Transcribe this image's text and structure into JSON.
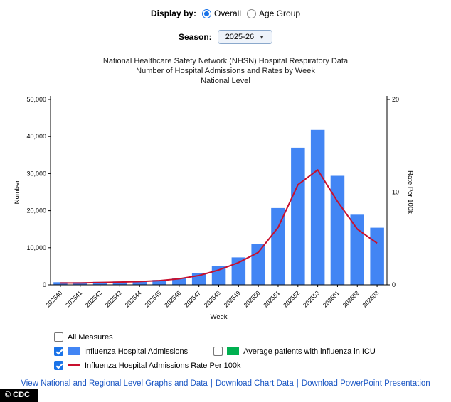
{
  "controls": {
    "display_by_label": "Display by:",
    "display_options": [
      {
        "label": "Overall",
        "selected": true
      },
      {
        "label": "Age Group",
        "selected": false
      }
    ],
    "season_label": "Season:",
    "season_value": "2025-26",
    "caret": "▼"
  },
  "title": {
    "line1": "National Healthcare Safety Network (NHSN) Hospital Respiratory Data",
    "line2": "Number of Hospital Admissions and Rates by Week",
    "line3": "National Level"
  },
  "chart_data": {
    "type": "bar",
    "title": "Number of Hospital Admissions and Rates by Week - National Level",
    "categories": [
      "202540",
      "202541",
      "202542",
      "202543",
      "202544",
      "202545",
      "202546",
      "202547",
      "202548",
      "202549",
      "202550",
      "202551",
      "202552",
      "202553",
      "202601",
      "202602",
      "202603"
    ],
    "series": [
      {
        "name": "Influenza Hospital Admissions",
        "type": "bar",
        "axis": "left",
        "color": "#4285f4",
        "values": [
          700,
          700,
          800,
          900,
          1100,
          1300,
          1900,
          3100,
          5100,
          7400,
          11000,
          20700,
          37000,
          41800,
          29400,
          18900,
          15400
        ]
      },
      {
        "name": "Influenza Hospital Admissions Rate Per 100k",
        "type": "line",
        "axis": "right",
        "color": "#c8102e",
        "values": [
          0.2,
          0.2,
          0.25,
          0.3,
          0.35,
          0.45,
          0.65,
          1.0,
          1.6,
          2.4,
          3.5,
          6.2,
          10.8,
          12.4,
          9.0,
          6.0,
          4.5
        ]
      }
    ],
    "xlabel": "Week",
    "ylabel_left": "Number",
    "ylabel_right": "Rate Per 100k",
    "ylim_left": [
      0,
      50000
    ],
    "ylim_right": [
      0,
      20
    ],
    "yticks_left": {
      "values": [
        0,
        10000,
        20000,
        30000,
        40000,
        50000
      ],
      "labels": [
        "0",
        "10,000",
        "20,000",
        "30,000",
        "40,000",
        "50,000"
      ]
    },
    "yticks_right": {
      "values": [
        0,
        10,
        20
      ],
      "labels": [
        "0",
        "10",
        "20"
      ]
    },
    "grid": false,
    "legend_position": "bottom"
  },
  "legend": {
    "items": [
      {
        "label": "All Measures",
        "checked": false,
        "swatch": "none",
        "color": ""
      },
      {
        "label": "Influenza Hospital Admissions",
        "checked": true,
        "swatch": "bar",
        "color": "#4285f4"
      },
      {
        "label": "Average patients with influenza in ICU",
        "checked": false,
        "swatch": "bar",
        "color": "#00b050"
      },
      {
        "label": "Influenza Hospital Admissions Rate Per 100k",
        "checked": true,
        "swatch": "line",
        "color": "#c8102e"
      }
    ]
  },
  "footer": {
    "links": [
      "View National and Regional Level Graphs and Data",
      "Download Chart Data",
      "Download PowerPoint Presentation"
    ],
    "separator": "|",
    "copyright": "© CDC"
  }
}
